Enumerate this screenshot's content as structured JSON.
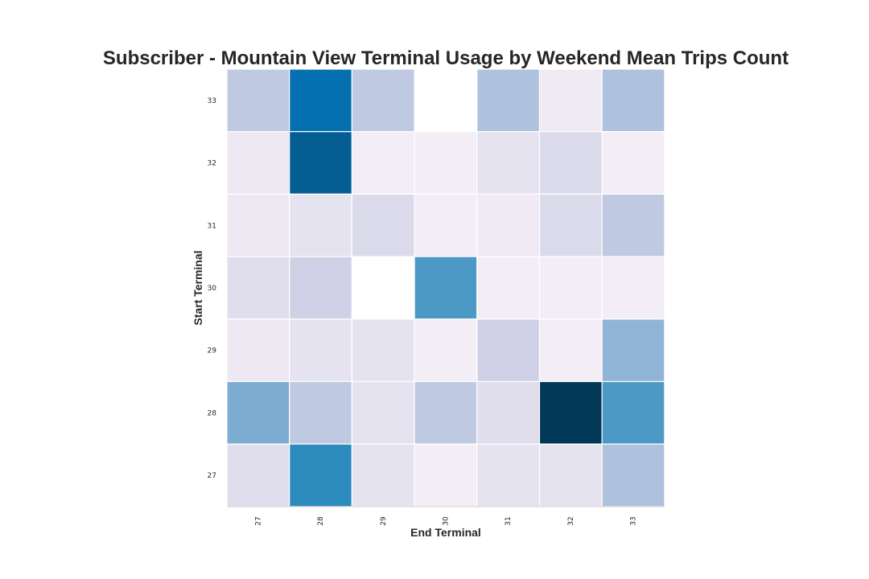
{
  "chart_data": {
    "type": "heatmap",
    "title": "Subscriber - Mountain View Terminal Usage by Weekend Mean Trips Count",
    "xlabel": "End Terminal",
    "ylabel": "Start Terminal",
    "x_categories": [
      "27",
      "28",
      "29",
      "30",
      "31",
      "32",
      "33"
    ],
    "y_categories": [
      "33",
      "32",
      "31",
      "30",
      "29",
      "28",
      "27"
    ],
    "value_range": [
      0,
      10
    ],
    "values": [
      [
        3.0,
        7.5,
        3.0,
        null,
        3.5,
        1.0,
        3.5
      ],
      [
        1.2,
        8.5,
        0.8,
        0.8,
        1.5,
        2.0,
        0.8
      ],
      [
        1.2,
        1.5,
        2.0,
        0.8,
        1.0,
        2.0,
        3.0
      ],
      [
        1.8,
        2.5,
        null,
        5.8,
        0.8,
        0.8,
        0.8
      ],
      [
        1.2,
        1.5,
        1.5,
        0.8,
        2.5,
        0.8,
        4.3
      ],
      [
        4.8,
        3.0,
        1.5,
        3.0,
        1.8,
        10.0,
        5.8
      ],
      [
        1.8,
        6.5,
        1.5,
        0.8,
        1.5,
        1.5,
        3.5
      ]
    ],
    "colormap": {
      "name": "PuBu",
      "stops": [
        "#fff7fb",
        "#ece7f2",
        "#d0d1e6",
        "#a6bddb",
        "#74a9cf",
        "#3690c0",
        "#0570b0",
        "#045a8d",
        "#023858"
      ]
    },
    "grid": false
  }
}
